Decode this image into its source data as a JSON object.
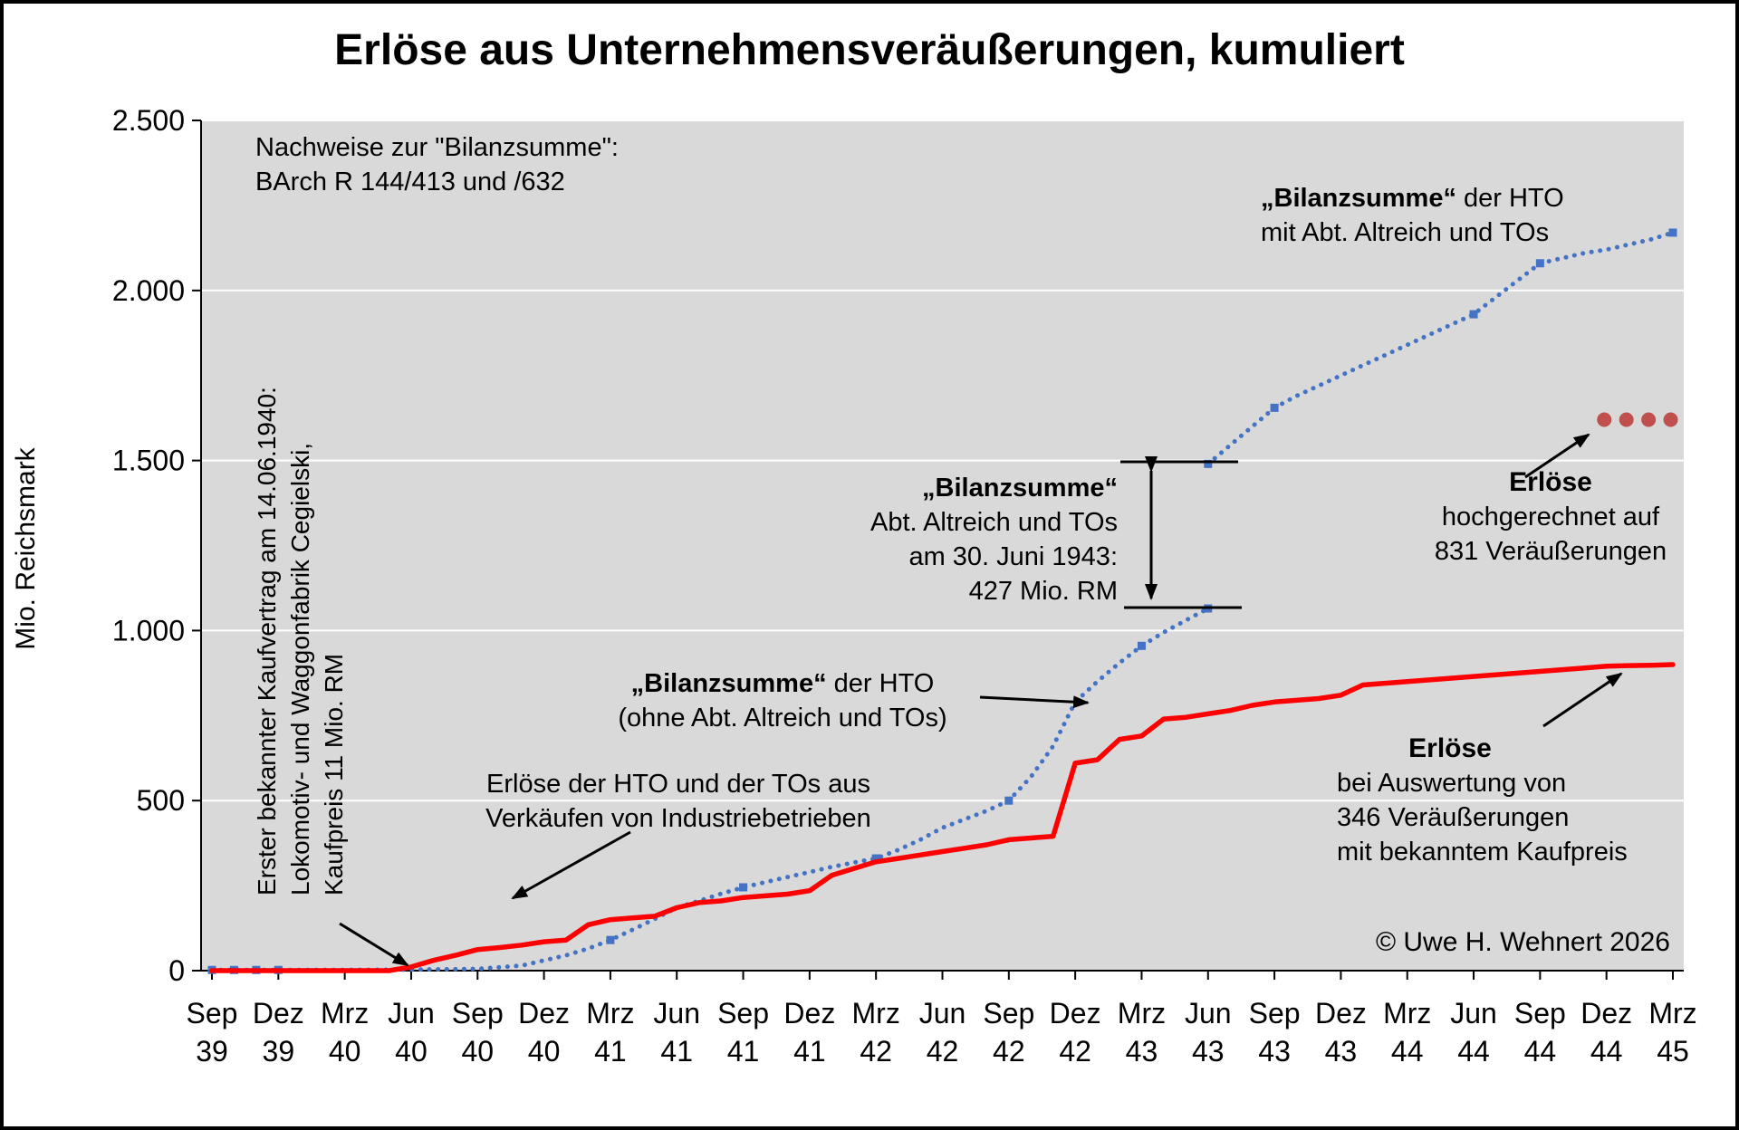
{
  "title": "Erlöse aus Unternehmensveräußerungen, kumuliert",
  "y_axis": {
    "title": "Mio. Reichsmark",
    "ticks": [
      {
        "label": "0",
        "value": 0
      },
      {
        "label": "500",
        "value": 500
      },
      {
        "label": "1.000",
        "value": 1000
      },
      {
        "label": "1.500",
        "value": 1500
      },
      {
        "label": "2.000",
        "value": 2000
      },
      {
        "label": "2.500",
        "value": 2500
      }
    ]
  },
  "x_axis": {
    "ticks": [
      {
        "month": "Sep",
        "year": "39"
      },
      {
        "month": "Dez",
        "year": "39"
      },
      {
        "month": "Mrz",
        "year": "40"
      },
      {
        "month": "Jun",
        "year": "40"
      },
      {
        "month": "Sep",
        "year": "40"
      },
      {
        "month": "Dez",
        "year": "40"
      },
      {
        "month": "Mrz",
        "year": "41"
      },
      {
        "month": "Jun",
        "year": "41"
      },
      {
        "month": "Sep",
        "year": "41"
      },
      {
        "month": "Dez",
        "year": "41"
      },
      {
        "month": "Mrz",
        "year": "42"
      },
      {
        "month": "Jun",
        "year": "42"
      },
      {
        "month": "Sep",
        "year": "42"
      },
      {
        "month": "Dez",
        "year": "42"
      },
      {
        "month": "Mrz",
        "year": "43"
      },
      {
        "month": "Jun",
        "year": "43"
      },
      {
        "month": "Sep",
        "year": "43"
      },
      {
        "month": "Dez",
        "year": "43"
      },
      {
        "month": "Mrz",
        "year": "44"
      },
      {
        "month": "Jun",
        "year": "44"
      },
      {
        "month": "Sep",
        "year": "44"
      },
      {
        "month": "Dez",
        "year": "44"
      },
      {
        "month": "Mrz",
        "year": "45"
      }
    ]
  },
  "annotations": {
    "source_note": {
      "line1": "Nachweise zur \"Bilanzsumme\":",
      "line2": "BArch R 144/413 und /632"
    },
    "first_contract": {
      "line1": "Erster bekannter Kaufvertrag am 14.06.1940:",
      "line2": "Lokomotiv- und Waggonfabrik Cegielski,",
      "line3": "Kaufpreis 11 Mio. RM"
    },
    "bilanz_mit": {
      "bold": "„Bilanzsumme“",
      "rest": " der HTO",
      "line2": "mit Abt. Altreich und TOs"
    },
    "bilanz_diff": {
      "bold": "„Bilanzsumme“",
      "line2": "Abt. Altreich und TOs",
      "line3": "am 30. Juni 1943:",
      "line4": "427 Mio. RM"
    },
    "bilanz_ohne": {
      "bold": "„Bilanzsumme“",
      "rest": " der HTO",
      "line2": "(ohne Abt. Altreich und TOs)"
    },
    "erloese_hto": {
      "line1": "Erlöse der HTO und der TOs aus",
      "line2": "Verkäufen von Industriebetrieben"
    },
    "erloese_hochgerechnet": {
      "bold": "Erlöse",
      "line2": "hochgerechnet auf",
      "line3": "831 Veräußerungen"
    },
    "erloese_346": {
      "bold": "Erlöse",
      "line2": "bei Auswertung von",
      "line3": "346 Veräußerungen",
      "line4": "mit bekanntem Kaufpreis"
    },
    "copyright": "© Uwe H. Wehnert 2026"
  },
  "chart_data": {
    "type": "line",
    "title": "Erlöse aus Unternehmensveräußerungen, kumuliert",
    "xlabel": "",
    "ylabel": "Mio. Reichsmark",
    "ylim": [
      0,
      2500
    ],
    "x_unit": "Monate ab Sep 1939 (0 = Sep 39, 66 = Mrz 45)",
    "grid": "horizontal",
    "plot_background": "#d9d9d9",
    "gridline_color": "#ffffff",
    "key_values": {
      "bilanzsumme_abt_altreich_und_tos_30_06_1943_mio_rm": 427,
      "erste_kaufsumme_mio_rm": 11,
      "anzahl_ausgewertete_veraeusserungen": 346,
      "anzahl_hochgerechnete_veraeusserungen": 831
    },
    "series": [
      {
        "name": "\"Bilanzsumme\" der HTO (ohne Abt. Altreich und TOs)",
        "color": "#4472C4",
        "style": "dotted",
        "points": [
          [
            0,
            2
          ],
          [
            3,
            2
          ],
          [
            6,
            2
          ],
          [
            9,
            3
          ],
          [
            12,
            5
          ],
          [
            14,
            15
          ],
          [
            15,
            30
          ],
          [
            16,
            45
          ],
          [
            17,
            65
          ],
          [
            18,
            90
          ],
          [
            19,
            120
          ],
          [
            20,
            152
          ],
          [
            21,
            185
          ],
          [
            22,
            205
          ],
          [
            23,
            226
          ],
          [
            24,
            245
          ],
          [
            25,
            260
          ],
          [
            26,
            275
          ],
          [
            27,
            290
          ],
          [
            28,
            305
          ],
          [
            29,
            318
          ],
          [
            30,
            330
          ],
          [
            31,
            355
          ],
          [
            32,
            385
          ],
          [
            33,
            420
          ],
          [
            34,
            445
          ],
          [
            35,
            470
          ],
          [
            36,
            500
          ],
          [
            37,
            570
          ],
          [
            38,
            660
          ],
          [
            39,
            790
          ],
          [
            40,
            850
          ],
          [
            41,
            905
          ],
          [
            42,
            955
          ],
          [
            43,
            995
          ],
          [
            44,
            1030
          ],
          [
            45,
            1065
          ]
        ],
        "markers": [
          [
            0,
            2
          ],
          [
            1,
            2
          ],
          [
            2,
            2
          ],
          [
            3,
            2
          ],
          [
            18,
            90
          ],
          [
            24,
            245
          ],
          [
            30,
            330
          ],
          [
            36,
            500
          ],
          [
            42,
            955
          ],
          [
            45,
            1065
          ]
        ]
      },
      {
        "name": "\"Bilanzsumme\" der HTO mit Abt. Altreich und TOs",
        "color": "#4472C4",
        "style": "dotted",
        "points": [
          [
            45,
            1490
          ],
          [
            46,
            1545
          ],
          [
            47,
            1600
          ],
          [
            48,
            1655
          ],
          [
            49,
            1690
          ],
          [
            50,
            1720
          ],
          [
            51,
            1750
          ],
          [
            52,
            1780
          ],
          [
            53,
            1810
          ],
          [
            54,
            1840
          ],
          [
            55,
            1870
          ],
          [
            56,
            1900
          ],
          [
            57,
            1930
          ],
          [
            58,
            1980
          ],
          [
            59,
            2030
          ],
          [
            60,
            2080
          ],
          [
            61,
            2095
          ],
          [
            62,
            2110
          ],
          [
            63,
            2120
          ],
          [
            64,
            2135
          ],
          [
            65,
            2150
          ],
          [
            66,
            2170
          ]
        ],
        "markers": [
          [
            45,
            1490
          ],
          [
            48,
            1655
          ],
          [
            57,
            1930
          ],
          [
            60,
            2080
          ],
          [
            66,
            2170
          ]
        ]
      },
      {
        "name": "Erlöse bei Auswertung von 346 Veräußerungen mit bekanntem Kaufpreis",
        "color": "#FF0000",
        "style": "solid",
        "points": [
          [
            0,
            0
          ],
          [
            8,
            0
          ],
          [
            9,
            11
          ],
          [
            10,
            30
          ],
          [
            11,
            45
          ],
          [
            12,
            62
          ],
          [
            13,
            68
          ],
          [
            14,
            75
          ],
          [
            15,
            85
          ],
          [
            16,
            90
          ],
          [
            17,
            135
          ],
          [
            18,
            150
          ],
          [
            19,
            155
          ],
          [
            20,
            160
          ],
          [
            21,
            185
          ],
          [
            22,
            200
          ],
          [
            23,
            205
          ],
          [
            24,
            215
          ],
          [
            25,
            220
          ],
          [
            26,
            225
          ],
          [
            27,
            235
          ],
          [
            28,
            280
          ],
          [
            29,
            300
          ],
          [
            30,
            320
          ],
          [
            31,
            330
          ],
          [
            32,
            340
          ],
          [
            33,
            350
          ],
          [
            34,
            360
          ],
          [
            35,
            370
          ],
          [
            36,
            385
          ],
          [
            37,
            390
          ],
          [
            38,
            395
          ],
          [
            39,
            610
          ],
          [
            40,
            620
          ],
          [
            41,
            680
          ],
          [
            42,
            690
          ],
          [
            43,
            740
          ],
          [
            44,
            745
          ],
          [
            45,
            755
          ],
          [
            46,
            765
          ],
          [
            47,
            780
          ],
          [
            48,
            790
          ],
          [
            49,
            795
          ],
          [
            50,
            800
          ],
          [
            51,
            810
          ],
          [
            52,
            840
          ],
          [
            53,
            845
          ],
          [
            54,
            850
          ],
          [
            55,
            855
          ],
          [
            56,
            860
          ],
          [
            57,
            865
          ],
          [
            58,
            870
          ],
          [
            59,
            875
          ],
          [
            60,
            880
          ],
          [
            61,
            885
          ],
          [
            62,
            890
          ],
          [
            63,
            895
          ],
          [
            64,
            897
          ],
          [
            65,
            898
          ],
          [
            66,
            900
          ]
        ],
        "markers": []
      },
      {
        "name": "Erlöse hochgerechnet auf 831 Veräußerungen",
        "color": "#C0504D",
        "style": "dots",
        "points": [
          [
            62.9,
            1620
          ],
          [
            63.9,
            1620
          ],
          [
            64.9,
            1620
          ],
          [
            65.9,
            1620
          ]
        ],
        "markers": []
      }
    ]
  }
}
